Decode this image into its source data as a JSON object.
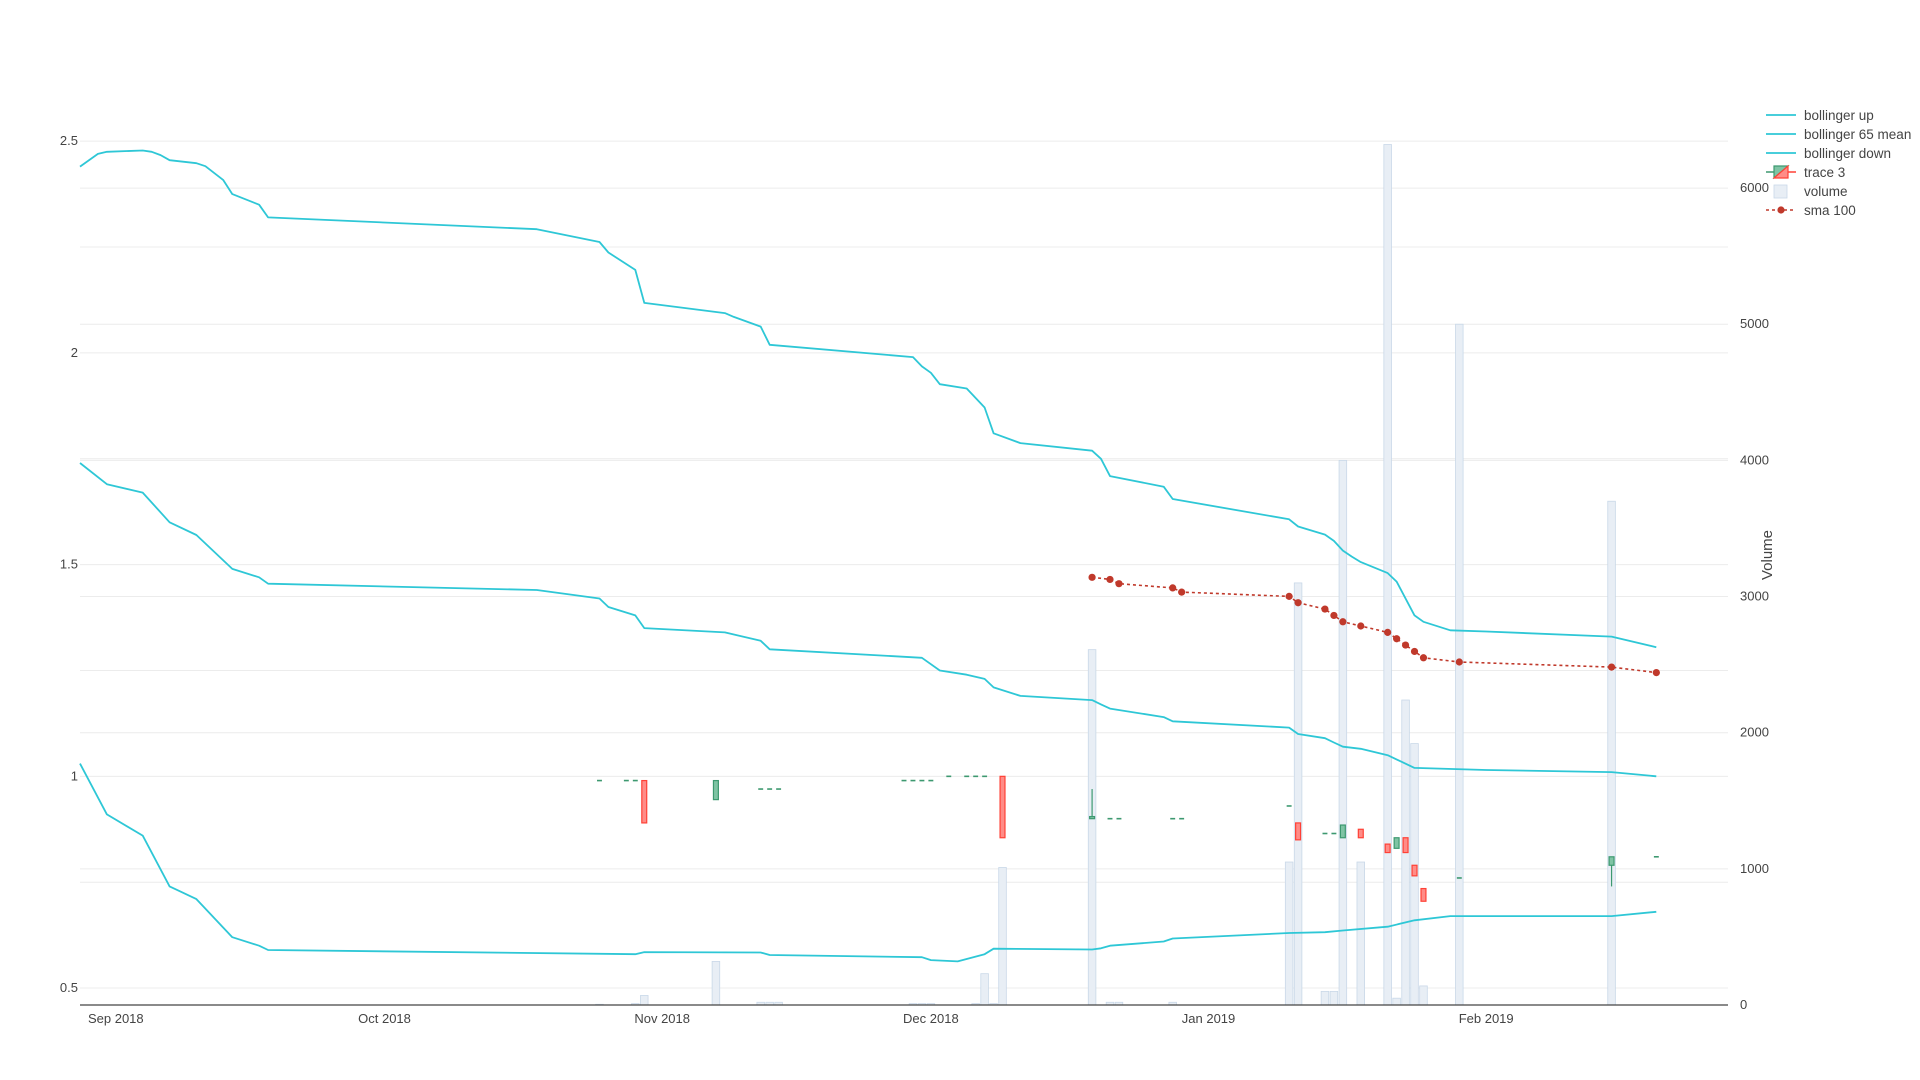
{
  "colors": {
    "bollinger": "#2ec7d6",
    "increasing": "#3d9970",
    "increasing_fill": "#7fc4a4",
    "decreasing": "#ff4136",
    "decreasing_fill": "#ff8c87",
    "volume_fill": "#e8eef5",
    "volume_stroke": "#c9d8e8",
    "sma": "#c0392b",
    "grid": "#ececec",
    "axis": "#444444"
  },
  "chart_data": {
    "type": "candlestick",
    "x_range": [
      "2018-08-28",
      "2019-02-28"
    ],
    "y_range": [
      0.46,
      2.55
    ],
    "y2_range": [
      0,
      6500
    ],
    "x_ticks": [
      {
        "date": "2018-09-01",
        "label": "Sep 2018"
      },
      {
        "date": "2018-10-01",
        "label": "Oct 2018"
      },
      {
        "date": "2018-11-01",
        "label": "Nov 2018"
      },
      {
        "date": "2018-12-01",
        "label": "Dec 2018"
      },
      {
        "date": "2019-01-01",
        "label": "Jan 2019"
      },
      {
        "date": "2019-02-01",
        "label": "Feb 2019"
      }
    ],
    "y_ticks": [
      {
        "value": 0.5,
        "label": "0.5"
      },
      {
        "value": 1,
        "label": "1"
      },
      {
        "value": 1.5,
        "label": "1.5"
      },
      {
        "value": 2,
        "label": "2"
      },
      {
        "value": 2.5,
        "label": "2.5"
      }
    ],
    "y_minor_gridlines": [
      0.75,
      1.25,
      1.75,
      2.25
    ],
    "y2_ticks": [
      {
        "value": 0,
        "label": "0"
      },
      {
        "value": 1000,
        "label": "1000"
      },
      {
        "value": 2000,
        "label": "2000"
      },
      {
        "value": 3000,
        "label": "3000"
      },
      {
        "value": 4000,
        "label": "4000"
      },
      {
        "value": 5000,
        "label": "5000"
      },
      {
        "value": 6000,
        "label": "6000"
      }
    ],
    "y2_title": "Volume",
    "legend_position": "top-right",
    "legend": [
      {
        "label": "bollinger up",
        "kind": "line"
      },
      {
        "label": "bollinger 65 mean",
        "kind": "line"
      },
      {
        "label": "bollinger down",
        "kind": "line"
      },
      {
        "label": "trace 3",
        "kind": "candle"
      },
      {
        "label": "volume",
        "kind": "bar"
      },
      {
        "label": "sma 100",
        "kind": "dotline"
      }
    ],
    "series": [
      {
        "name": "bollinger up",
        "points": [
          [
            "2018-08-28",
            2.44
          ],
          [
            "2018-08-30",
            2.47
          ],
          [
            "2018-08-31",
            2.475
          ],
          [
            "2018-09-04",
            2.478
          ],
          [
            "2018-09-05",
            2.475
          ],
          [
            "2018-09-06",
            2.467
          ],
          [
            "2018-09-07",
            2.455
          ],
          [
            "2018-09-10",
            2.448
          ],
          [
            "2018-09-11",
            2.441
          ],
          [
            "2018-09-13",
            2.408
          ],
          [
            "2018-09-14",
            2.375
          ],
          [
            "2018-09-17",
            2.35
          ],
          [
            "2018-09-18",
            2.32
          ],
          [
            "2018-10-18",
            2.292
          ],
          [
            "2018-10-25",
            2.262
          ],
          [
            "2018-10-26",
            2.237
          ],
          [
            "2018-10-29",
            2.196
          ],
          [
            "2018-10-30",
            2.118
          ],
          [
            "2018-11-08",
            2.094
          ],
          [
            "2018-11-09",
            2.085
          ],
          [
            "2018-11-12",
            2.062
          ],
          [
            "2018-11-13",
            2.019
          ],
          [
            "2018-11-29",
            1.99
          ],
          [
            "2018-11-30",
            1.968
          ],
          [
            "2018-12-01",
            1.953
          ],
          [
            "2018-12-02",
            1.926
          ],
          [
            "2018-12-05",
            1.916
          ],
          [
            "2018-12-07",
            1.871
          ],
          [
            "2018-12-08",
            1.81
          ],
          [
            "2018-12-11",
            1.787
          ],
          [
            "2018-12-19",
            1.769
          ],
          [
            "2018-12-20",
            1.75
          ],
          [
            "2018-12-21",
            1.709
          ],
          [
            "2018-12-27",
            1.684
          ],
          [
            "2018-12-28",
            1.655
          ],
          [
            "2019-01-10",
            1.607
          ],
          [
            "2019-01-11",
            1.59
          ],
          [
            "2019-01-14",
            1.571
          ],
          [
            "2019-01-15",
            1.556
          ],
          [
            "2019-01-16",
            1.533
          ],
          [
            "2019-01-17",
            1.519
          ],
          [
            "2019-01-18",
            1.506
          ],
          [
            "2019-01-21",
            1.48
          ],
          [
            "2019-01-22",
            1.46
          ],
          [
            "2019-01-24",
            1.38
          ],
          [
            "2019-01-25",
            1.365
          ],
          [
            "2019-01-28",
            1.345
          ],
          [
            "2019-02-01",
            1.342
          ],
          [
            "2019-02-15",
            1.33
          ],
          [
            "2019-02-20",
            1.305
          ]
        ]
      },
      {
        "name": "bollinger 65 mean",
        "points": [
          [
            "2018-08-28",
            1.74
          ],
          [
            "2018-08-31",
            1.69
          ],
          [
            "2018-09-04",
            1.67
          ],
          [
            "2018-09-07",
            1.6
          ],
          [
            "2018-09-10",
            1.57
          ],
          [
            "2018-09-14",
            1.49
          ],
          [
            "2018-09-17",
            1.47
          ],
          [
            "2018-09-18",
            1.455
          ],
          [
            "2018-10-18",
            1.44
          ],
          [
            "2018-10-25",
            1.42
          ],
          [
            "2018-10-26",
            1.4
          ],
          [
            "2018-10-29",
            1.38
          ],
          [
            "2018-10-30",
            1.35
          ],
          [
            "2018-11-08",
            1.34
          ],
          [
            "2018-11-12",
            1.32
          ],
          [
            "2018-11-13",
            1.3
          ],
          [
            "2018-11-30",
            1.28
          ],
          [
            "2018-12-02",
            1.25
          ],
          [
            "2018-12-05",
            1.24
          ],
          [
            "2018-12-07",
            1.23
          ],
          [
            "2018-12-08",
            1.21
          ],
          [
            "2018-12-11",
            1.19
          ],
          [
            "2018-12-19",
            1.18
          ],
          [
            "2018-12-20",
            1.17
          ],
          [
            "2018-12-21",
            1.16
          ],
          [
            "2018-12-27",
            1.14
          ],
          [
            "2018-12-28",
            1.13
          ],
          [
            "2019-01-10",
            1.115
          ],
          [
            "2019-01-11",
            1.1
          ],
          [
            "2019-01-14",
            1.09
          ],
          [
            "2019-01-15",
            1.08
          ],
          [
            "2019-01-16",
            1.07
          ],
          [
            "2019-01-18",
            1.065
          ],
          [
            "2019-01-21",
            1.05
          ],
          [
            "2019-01-24",
            1.02
          ],
          [
            "2019-02-01",
            1.015
          ],
          [
            "2019-02-15",
            1.01
          ],
          [
            "2019-02-20",
            1.0
          ]
        ]
      },
      {
        "name": "bollinger down",
        "points": [
          [
            "2018-08-28",
            1.03
          ],
          [
            "2018-08-31",
            0.91
          ],
          [
            "2018-09-04",
            0.86
          ],
          [
            "2018-09-07",
            0.74
          ],
          [
            "2018-09-10",
            0.71
          ],
          [
            "2018-09-14",
            0.62
          ],
          [
            "2018-09-17",
            0.6
          ],
          [
            "2018-09-18",
            0.59
          ],
          [
            "2018-10-29",
            0.58
          ],
          [
            "2018-10-30",
            0.585
          ],
          [
            "2018-11-12",
            0.584
          ],
          [
            "2018-11-13",
            0.578
          ],
          [
            "2018-11-30",
            0.573
          ],
          [
            "2018-12-01",
            0.566
          ],
          [
            "2018-12-04",
            0.563
          ],
          [
            "2018-12-07",
            0.58
          ],
          [
            "2018-12-08",
            0.593
          ],
          [
            "2018-12-19",
            0.591
          ],
          [
            "2018-12-20",
            0.594
          ],
          [
            "2018-12-21",
            0.6
          ],
          [
            "2018-12-27",
            0.61
          ],
          [
            "2018-12-28",
            0.617
          ],
          [
            "2019-01-10",
            0.63
          ],
          [
            "2019-01-14",
            0.632
          ],
          [
            "2019-01-16",
            0.636
          ],
          [
            "2019-01-21",
            0.645
          ],
          [
            "2019-01-24",
            0.66
          ],
          [
            "2019-01-28",
            0.67
          ],
          [
            "2019-02-15",
            0.67
          ],
          [
            "2019-02-20",
            0.68
          ]
        ]
      },
      {
        "name": "sma 100",
        "points": [
          [
            "2018-12-19",
            1.47
          ],
          [
            "2018-12-21",
            1.465
          ],
          [
            "2018-12-22",
            1.455
          ],
          [
            "2018-12-28",
            1.445
          ],
          [
            "2018-12-29",
            1.435
          ],
          [
            "2019-01-10",
            1.425
          ],
          [
            "2019-01-11",
            1.41
          ],
          [
            "2019-01-14",
            1.395
          ],
          [
            "2019-01-15",
            1.38
          ],
          [
            "2019-01-16",
            1.365
          ],
          [
            "2019-01-18",
            1.355
          ],
          [
            "2019-01-21",
            1.34
          ],
          [
            "2019-01-22",
            1.325
          ],
          [
            "2019-01-23",
            1.31
          ],
          [
            "2019-01-24",
            1.295
          ],
          [
            "2019-01-25",
            1.28
          ],
          [
            "2019-01-29",
            1.27
          ],
          [
            "2019-02-15",
            1.258
          ],
          [
            "2019-02-20",
            1.245
          ]
        ]
      }
    ],
    "candles": [
      {
        "x": "2018-10-25",
        "open": 0.99,
        "high": 0.99,
        "low": 0.99,
        "close": 0.99
      },
      {
        "x": "2018-10-28",
        "open": 0.99,
        "high": 0.99,
        "low": 0.99,
        "close": 0.99
      },
      {
        "x": "2018-10-29",
        "open": 0.99,
        "high": 0.99,
        "low": 0.99,
        "close": 0.99
      },
      {
        "x": "2018-10-30",
        "open": 0.99,
        "high": 0.99,
        "low": 0.89,
        "close": 0.89
      },
      {
        "x": "2018-11-07",
        "open": 0.945,
        "high": 0.99,
        "low": 0.945,
        "close": 0.99
      },
      {
        "x": "2018-11-12",
        "open": 0.97,
        "high": 0.97,
        "low": 0.97,
        "close": 0.97
      },
      {
        "x": "2018-11-13",
        "open": 0.97,
        "high": 0.97,
        "low": 0.97,
        "close": 0.97
      },
      {
        "x": "2018-11-14",
        "open": 0.97,
        "high": 0.97,
        "low": 0.97,
        "close": 0.97
      },
      {
        "x": "2018-11-28",
        "open": 0.99,
        "high": 0.99,
        "low": 0.99,
        "close": 0.99
      },
      {
        "x": "2018-11-29",
        "open": 0.99,
        "high": 0.99,
        "low": 0.99,
        "close": 0.99
      },
      {
        "x": "2018-11-30",
        "open": 0.99,
        "high": 0.99,
        "low": 0.99,
        "close": 0.99
      },
      {
        "x": "2018-12-01",
        "open": 0.99,
        "high": 0.99,
        "low": 0.99,
        "close": 0.99
      },
      {
        "x": "2018-12-03",
        "open": 1.0,
        "high": 1.0,
        "low": 1.0,
        "close": 1.0
      },
      {
        "x": "2018-12-05",
        "open": 1.0,
        "high": 1.0,
        "low": 1.0,
        "close": 1.0
      },
      {
        "x": "2018-12-06",
        "open": 1.0,
        "high": 1.0,
        "low": 1.0,
        "close": 1.0
      },
      {
        "x": "2018-12-07",
        "open": 1.0,
        "high": 1.0,
        "low": 1.0,
        "close": 1.0
      },
      {
        "x": "2018-12-09",
        "open": 1.0,
        "high": 1.0,
        "low": 0.855,
        "close": 0.855
      },
      {
        "x": "2018-12-19",
        "open": 0.9,
        "high": 0.97,
        "low": 0.9,
        "close": 0.905
      },
      {
        "x": "2018-12-21",
        "open": 0.9,
        "high": 0.9,
        "low": 0.9,
        "close": 0.9
      },
      {
        "x": "2018-12-22",
        "open": 0.9,
        "high": 0.9,
        "low": 0.9,
        "close": 0.9
      },
      {
        "x": "2018-12-28",
        "open": 0.9,
        "high": 0.9,
        "low": 0.9,
        "close": 0.9
      },
      {
        "x": "2018-12-29",
        "open": 0.9,
        "high": 0.9,
        "low": 0.9,
        "close": 0.9
      },
      {
        "x": "2019-01-10",
        "open": 0.93,
        "high": 0.93,
        "low": 0.93,
        "close": 0.93
      },
      {
        "x": "2019-01-11",
        "open": 0.89,
        "high": 0.89,
        "low": 0.85,
        "close": 0.85
      },
      {
        "x": "2019-01-14",
        "open": 0.865,
        "high": 0.865,
        "low": 0.865,
        "close": 0.865
      },
      {
        "x": "2019-01-15",
        "open": 0.865,
        "high": 0.865,
        "low": 0.865,
        "close": 0.865
      },
      {
        "x": "2019-01-16",
        "open": 0.855,
        "high": 0.885,
        "low": 0.855,
        "close": 0.885
      },
      {
        "x": "2019-01-18",
        "open": 0.875,
        "high": 0.875,
        "low": 0.855,
        "close": 0.855
      },
      {
        "x": "2019-01-21",
        "open": 0.84,
        "high": 0.84,
        "low": 0.82,
        "close": 0.82
      },
      {
        "x": "2019-01-22",
        "open": 0.83,
        "high": 0.855,
        "low": 0.83,
        "close": 0.855
      },
      {
        "x": "2019-01-23",
        "open": 0.855,
        "high": 0.855,
        "low": 0.82,
        "close": 0.82
      },
      {
        "x": "2019-01-24",
        "open": 0.79,
        "high": 0.79,
        "low": 0.765,
        "close": 0.765
      },
      {
        "x": "2019-01-25",
        "open": 0.735,
        "high": 0.735,
        "low": 0.705,
        "close": 0.705
      },
      {
        "x": "2019-01-29",
        "open": 0.76,
        "high": 0.76,
        "low": 0.76,
        "close": 0.76
      },
      {
        "x": "2019-02-15",
        "open": 0.79,
        "high": 0.81,
        "low": 0.74,
        "close": 0.81
      },
      {
        "x": "2019-02-20",
        "open": 0.81,
        "high": 0.81,
        "low": 0.81,
        "close": 0.81
      }
    ],
    "volume": [
      [
        "2018-10-25",
        5
      ],
      [
        "2018-10-29",
        10
      ],
      [
        "2018-10-30",
        70
      ],
      [
        "2018-11-07",
        320
      ],
      [
        "2018-11-12",
        20
      ],
      [
        "2018-11-13",
        20
      ],
      [
        "2018-11-14",
        20
      ],
      [
        "2018-11-29",
        10
      ],
      [
        "2018-11-30",
        10
      ],
      [
        "2018-12-01",
        10
      ],
      [
        "2018-12-06",
        10
      ],
      [
        "2018-12-07",
        230
      ],
      [
        "2018-12-08",
        10
      ],
      [
        "2018-12-09",
        1010
      ],
      [
        "2018-12-19",
        2610
      ],
      [
        "2018-12-21",
        20
      ],
      [
        "2018-12-22",
        20
      ],
      [
        "2018-12-28",
        20
      ],
      [
        "2019-01-10",
        1050
      ],
      [
        "2019-01-11",
        3100
      ],
      [
        "2019-01-14",
        100
      ],
      [
        "2019-01-15",
        100
      ],
      [
        "2019-01-16",
        4000
      ],
      [
        "2019-01-18",
        1050
      ],
      [
        "2019-01-21",
        6320
      ],
      [
        "2019-01-22",
        50
      ],
      [
        "2019-01-23",
        2240
      ],
      [
        "2019-01-24",
        1920
      ],
      [
        "2019-01-25",
        140
      ],
      [
        "2019-01-29",
        5000
      ],
      [
        "2019-02-15",
        3700
      ]
    ]
  }
}
